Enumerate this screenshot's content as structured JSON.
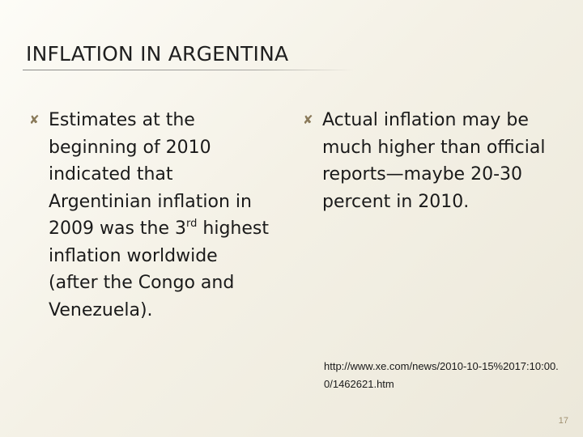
{
  "slide": {
    "title": "INFLATION IN ARGENTINA",
    "bullet_icon": "x-mark-icon",
    "left_bullet": {
      "text_before_sup": "Estimates at the beginning of 2010 indicated that Argentinian inflation in 2009 was the 3",
      "sup": "rd",
      "text_after_sup": " highest inflation worldwide (after the Congo and Venezuela)."
    },
    "right_bullet": {
      "text": "Actual inflation may be much higher than official reports—maybe 20-30 percent in 2010."
    },
    "source_url": "http://www.xe.com/news/2010-10-15%2017:10:00.0/1462621.htm",
    "slide_number": "17",
    "colors": {
      "background": "#f4f1e6",
      "bullet_icon": "#8a7a5a",
      "slide_number": "#a09070"
    }
  }
}
